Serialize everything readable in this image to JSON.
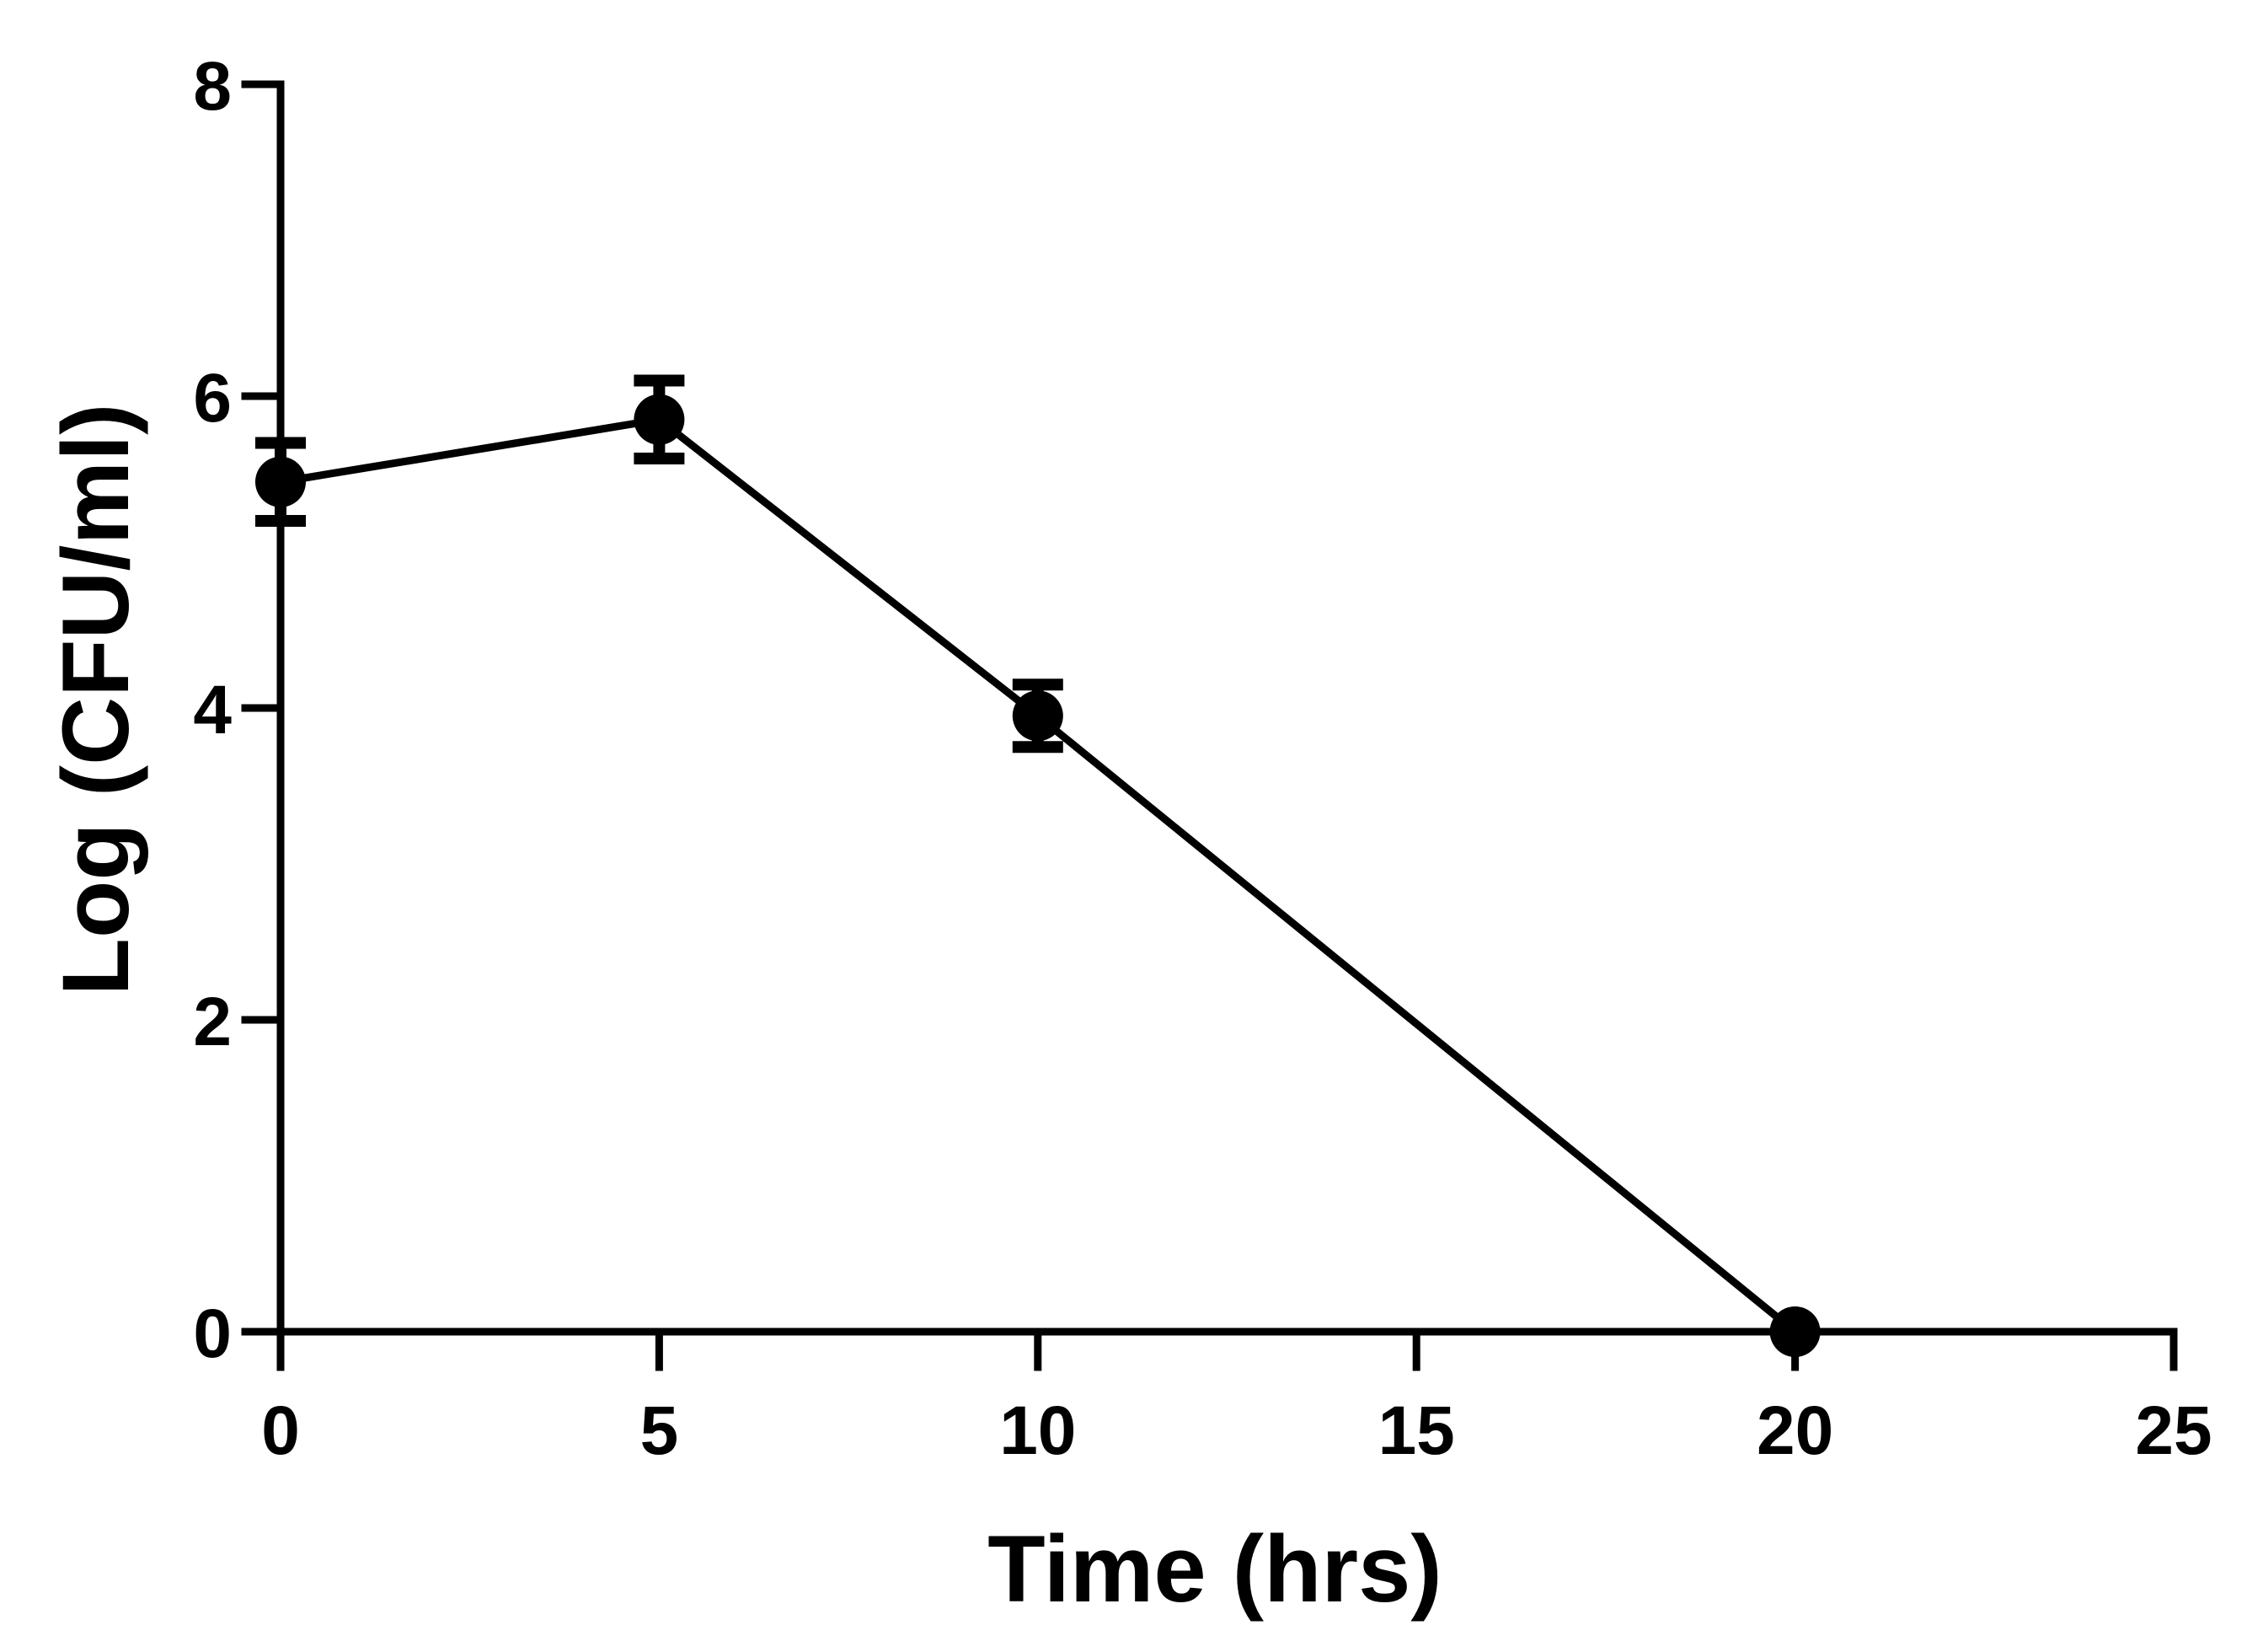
{
  "chart_data": {
    "type": "line",
    "title": "",
    "xlabel": "Time (hrs)",
    "ylabel": "Log (CFU/ml)",
    "xlim": [
      0,
      25
    ],
    "ylim": [
      0,
      8
    ],
    "x_ticks": [
      0,
      5,
      10,
      15,
      20,
      25
    ],
    "y_ticks": [
      0,
      2,
      4,
      6,
      8
    ],
    "grid": false,
    "legend": "none",
    "series": [
      {
        "color": "#000000",
        "marker": "circle",
        "points": [
          {
            "x": 0,
            "y": 5.45,
            "err": 0.25
          },
          {
            "x": 5,
            "y": 5.85,
            "err": 0.25
          },
          {
            "x": 10,
            "y": 3.95,
            "err": 0.2
          },
          {
            "x": 20,
            "y": 0.0,
            "err": 0
          }
        ]
      }
    ]
  }
}
